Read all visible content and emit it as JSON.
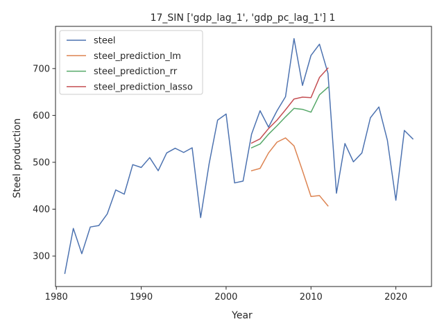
{
  "chart_data": {
    "type": "line",
    "title": "17_SIN ['gdp_lag_1', 'gdp_pc_lag_1'] 1",
    "xlabel": "Year",
    "ylabel": "Steel production",
    "xlim": [
      1979.9,
      2024.2
    ],
    "ylim": [
      235,
      790
    ],
    "xticks": [
      1980,
      1990,
      2000,
      2010,
      2020
    ],
    "yticks": [
      300,
      400,
      500,
      600,
      700
    ],
    "grid": false,
    "legend_position": "top-left",
    "series": [
      {
        "name": "steel",
        "color": "#4c72b0",
        "x": [
          1981,
          1982,
          1983,
          1984,
          1985,
          1986,
          1987,
          1988,
          1989,
          1990,
          1991,
          1992,
          1993,
          1994,
          1995,
          1996,
          1997,
          1998,
          1999,
          2000,
          2001,
          2002,
          2003,
          2004,
          2005,
          2006,
          2007,
          2008,
          2009,
          2010,
          2011,
          2012,
          2013,
          2014,
          2015,
          2016,
          2017,
          2018,
          2019,
          2020,
          2021,
          2022
        ],
        "y": [
          263,
          359,
          305,
          362,
          365,
          390,
          441,
          432,
          495,
          489,
          510,
          482,
          520,
          530,
          521,
          531,
          382,
          497,
          590,
          603,
          456,
          460,
          560,
          610,
          575,
          610,
          640,
          764,
          664,
          728,
          752,
          690,
          434,
          540,
          501,
          520,
          595,
          618,
          547,
          419,
          568,
          550
        ]
      },
      {
        "name": "steel_prediction_lm",
        "color": "#dd8452",
        "x": [
          2003,
          2004,
          2005,
          2006,
          2007,
          2008,
          2009,
          2010,
          2011,
          2012
        ],
        "y": [
          482,
          487,
          520,
          543,
          552,
          535,
          482,
          427,
          429,
          407
        ]
      },
      {
        "name": "steel_prediction_rr",
        "color": "#55a868",
        "x": [
          2003,
          2004,
          2005,
          2006,
          2007,
          2008,
          2009,
          2010,
          2011,
          2012
        ],
        "y": [
          531,
          539,
          560,
          578,
          597,
          615,
          613,
          607,
          644,
          660
        ]
      },
      {
        "name": "steel_prediction_lasso",
        "color": "#c44e52",
        "x": [
          2003,
          2004,
          2005,
          2006,
          2007,
          2008,
          2009,
          2010,
          2011,
          2012
        ],
        "y": [
          541,
          550,
          572,
          590,
          612,
          635,
          639,
          638,
          681,
          701
        ]
      }
    ]
  }
}
